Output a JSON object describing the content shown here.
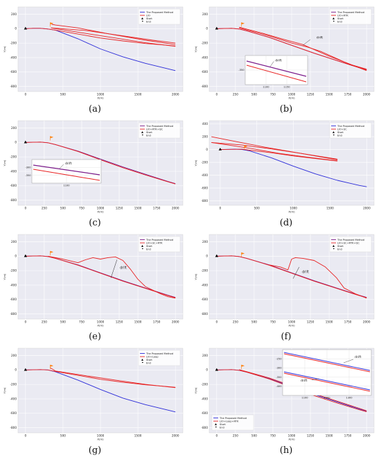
{
  "chart_data": [
    {
      "type": "line",
      "caption_label": "a",
      "xlabel": "X(m)",
      "ylabel": "Y(m)",
      "xlim": [
        -100,
        2100
      ],
      "ylim": [
        -870,
        300
      ],
      "xticks": [
        0,
        500,
        1000,
        1500,
        2000
      ],
      "yticks": [
        200,
        0,
        -200,
        -400,
        -600,
        -800
      ],
      "legend": "top-right",
      "legend_entries": [
        "The Proposed Method",
        "LIO",
        "Start",
        "End"
      ],
      "series": [
        {
          "name": "The Proposed Method",
          "color": "#2a2ad8",
          "x": [
            0,
            100,
            200,
            300,
            400,
            700,
            1000,
            1300,
            1600,
            1900,
            2000
          ],
          "y": [
            0,
            5,
            5,
            -5,
            -20,
            -140,
            -280,
            -390,
            -480,
            -555,
            -580
          ]
        },
        {
          "name": "LIO",
          "color": "#e82020",
          "x": [
            0,
            100,
            200,
            300,
            400,
            700,
            1000,
            1300,
            1600,
            1900,
            2000
          ],
          "y": [
            0,
            5,
            5,
            -5,
            -20,
            -75,
            -130,
            -170,
            -205,
            -230,
            -240
          ]
        },
        {
          "name": "LIO",
          "color": "#e82020",
          "x": [
            2000,
            1600,
            1200,
            800,
            400,
            340
          ],
          "y": [
            -245,
            -195,
            -130,
            -65,
            0,
            10
          ]
        },
        {
          "name": "LIO",
          "color": "#e82020",
          "x": [
            340,
            800,
            1300,
            1700,
            2000
          ],
          "y": [
            10,
            -25,
            -100,
            -160,
            -200
          ]
        },
        {
          "name": "LIO",
          "color": "#e82020",
          "x": [
            2000,
            1600,
            1100,
            700,
            400,
            350
          ],
          "y": [
            -220,
            -160,
            -70,
            10,
            50,
            60
          ]
        }
      ],
      "start": {
        "x": 0,
        "y": 0
      },
      "end": {
        "x": 330,
        "y": 55
      },
      "inset": null
    },
    {
      "type": "line",
      "caption_label": "b",
      "xlabel": "X(m)",
      "ylabel": "Y(m)",
      "xlim": [
        -100,
        2100
      ],
      "ylim": [
        -870,
        300
      ],
      "xticks": [
        0,
        250,
        500,
        750,
        1000,
        1250,
        1500,
        1750,
        2000
      ],
      "yticks": [
        200,
        0,
        -200,
        -400,
        -600,
        -800
      ],
      "legend": "top-right",
      "legend_entries": [
        "The Proposed Method",
        "LIO+RTK",
        "Start",
        "End"
      ],
      "series": [
        {
          "name": "The Proposed Method",
          "color": "#7a1a8a",
          "x": [
            0,
            200,
            300,
            400,
            700,
            1000,
            1300,
            1600,
            1900,
            2000
          ],
          "y": [
            0,
            5,
            -5,
            -30,
            -120,
            -230,
            -340,
            -440,
            -540,
            -570
          ]
        },
        {
          "name": "LIO+RTK",
          "color": "#e82020",
          "x": [
            0,
            200,
            300,
            400,
            700,
            1000,
            1300,
            1600,
            1900,
            2000
          ],
          "y": [
            0,
            5,
            -5,
            -30,
            -120,
            -230,
            -340,
            -440,
            -540,
            -570
          ]
        },
        {
          "name": "LIO+RTK",
          "color": "#e82020",
          "x": [
            300,
            600,
            900,
            1150,
            1300,
            1500,
            1800,
            2000
          ],
          "y": [
            20,
            -60,
            -150,
            -220,
            -290,
            -380,
            -500,
            -560
          ]
        },
        {
          "name": "LIO+RTK",
          "color": "#e82020",
          "x": [
            300,
            700,
            1000,
            1200,
            1400,
            1700,
            2000
          ],
          "y": [
            10,
            -100,
            -200,
            -250,
            -320,
            -460,
            -580
          ]
        }
      ],
      "start": {
        "x": 0,
        "y": 0
      },
      "end": {
        "x": 330,
        "y": 55
      },
      "annotation": "drift",
      "inset": {
        "xticks": [
          1100,
          1150
        ],
        "yticks": [
          -350
        ],
        "annotation": "drift"
      }
    },
    {
      "type": "line",
      "caption_label": "c",
      "xlabel": "X(m)",
      "ylabel": "Y(m)",
      "xlim": [
        -100,
        2100
      ],
      "ylim": [
        -870,
        300
      ],
      "xticks": [
        0,
        250,
        500,
        750,
        1000,
        1250,
        1500,
        1750,
        2000
      ],
      "yticks": [
        200,
        0,
        -200,
        -400,
        -600,
        -800
      ],
      "legend": "top-right",
      "legend_entries": [
        "The Proposed Method",
        "LIO+RTK+QC",
        "Start",
        "End"
      ],
      "series": [
        {
          "name": "The Proposed Method",
          "color": "#7a1a8a",
          "x": [
            0,
            200,
            300,
            400,
            700,
            1000,
            1300,
            1600,
            1900,
            2000
          ],
          "y": [
            0,
            5,
            -5,
            -30,
            -120,
            -230,
            -340,
            -440,
            -540,
            -570
          ]
        },
        {
          "name": "LIO+RTK+QC",
          "color": "#e82020",
          "x": [
            0,
            200,
            300,
            400,
            700,
            1000,
            1300,
            1600,
            1900,
            2000
          ],
          "y": [
            0,
            5,
            -5,
            -30,
            -125,
            -240,
            -350,
            -450,
            -545,
            -575
          ]
        }
      ],
      "start": {
        "x": 0,
        "y": 0
      },
      "end": {
        "x": 330,
        "y": 55
      },
      "inset": {
        "xticks": [
          1100
        ],
        "yticks": [
          -300,
          -350
        ],
        "annotation": "drift"
      }
    },
    {
      "type": "line",
      "caption_label": "d",
      "xlabel": "X(m)",
      "ylabel": "Y(m)",
      "xlim": [
        -150,
        2100
      ],
      "ylim": [
        -870,
        450
      ],
      "xticks": [
        0,
        500,
        1000,
        1500,
        2000
      ],
      "yticks": [
        400,
        200,
        0,
        -200,
        -400,
        -600,
        -800
      ],
      "legend": "top-right",
      "legend_entries": [
        "The Proposed Method",
        "LIO+SC",
        "Start",
        "End"
      ],
      "series": [
        {
          "name": "The Proposed Method",
          "color": "#2a2ad8",
          "x": [
            0,
            200,
            300,
            400,
            700,
            1000,
            1300,
            1600,
            1900,
            2000
          ],
          "y": [
            0,
            5,
            0,
            -20,
            -130,
            -260,
            -380,
            -480,
            -560,
            -580
          ]
        },
        {
          "name": "LIO+SC",
          "color": "#e82020",
          "x": [
            0,
            300,
            400,
            700,
            1000,
            1300,
            1600
          ],
          "y": [
            0,
            5,
            -10,
            -50,
            -100,
            -140,
            -180
          ]
        },
        {
          "name": "LIO+SC",
          "color": "#e82020",
          "x": [
            1600,
            1200,
            800,
            400,
            0,
            -120
          ],
          "y": [
            -175,
            -120,
            -60,
            20,
            90,
            110
          ]
        },
        {
          "name": "LIO+SC",
          "color": "#e82020",
          "x": [
            -120,
            300,
            700,
            1100,
            1600
          ],
          "y": [
            110,
            70,
            10,
            -60,
            -160
          ]
        },
        {
          "name": "LIO+SC",
          "color": "#e82020",
          "x": [
            1600,
            1100,
            600,
            100,
            -120
          ],
          "y": [
            -150,
            -60,
            40,
            150,
            200
          ]
        }
      ],
      "start": {
        "x": 0,
        "y": 0
      },
      "end": {
        "x": 330,
        "y": 30
      },
      "inset": null
    },
    {
      "type": "line",
      "caption_label": "e",
      "xlabel": "X(m)",
      "ylabel": "Y(m)",
      "xlim": [
        -100,
        2100
      ],
      "ylim": [
        -870,
        300
      ],
      "xticks": [
        0,
        250,
        500,
        750,
        1000,
        1250,
        1500,
        1750,
        2000
      ],
      "yticks": [
        200,
        0,
        -200,
        -400,
        -600,
        -800
      ],
      "legend": "top-right",
      "legend_entries": [
        "The Proposed Method",
        "LIO+SC+RTK",
        "Start",
        "End"
      ],
      "series": [
        {
          "name": "The Proposed Method",
          "color": "#7a1a8a",
          "x": [
            0,
            200,
            300,
            400,
            700,
            1000,
            1300,
            1600,
            1900,
            2000
          ],
          "y": [
            0,
            5,
            -5,
            -30,
            -120,
            -230,
            -340,
            -440,
            -540,
            -570
          ]
        },
        {
          "name": "LIO+SC+RTK",
          "color": "#e82020",
          "x": [
            0,
            200,
            300,
            400,
            700,
            1000,
            1300,
            1600,
            1900,
            2000
          ],
          "y": [
            0,
            5,
            -5,
            -30,
            -125,
            -235,
            -345,
            -445,
            -545,
            -575
          ]
        },
        {
          "name": "LIO+SC+RTK",
          "color": "#e82020",
          "x": [
            300,
            500,
            700,
            800,
            900,
            1000,
            1100,
            1200,
            1300,
            1400,
            1500,
            1600,
            1700,
            1800,
            1900,
            2000
          ],
          "y": [
            0,
            -40,
            -90,
            -50,
            -20,
            -40,
            -20,
            -10,
            -60,
            -180,
            -320,
            -420,
            -470,
            -520,
            -560,
            -580
          ]
        }
      ],
      "start": {
        "x": 0,
        "y": 0
      },
      "end": {
        "x": 330,
        "y": 40
      },
      "annotation": "drift",
      "inset": null
    },
    {
      "type": "line",
      "caption_label": "f",
      "xlabel": "X(m)",
      "ylabel": "Y(m)",
      "xlim": [
        -100,
        2100
      ],
      "ylim": [
        -870,
        300
      ],
      "xticks": [
        0,
        250,
        500,
        750,
        1000,
        1250,
        1500,
        1750,
        2000
      ],
      "yticks": [
        200,
        0,
        -200,
        -400,
        -600,
        -800
      ],
      "legend": "top-right",
      "legend_entries": [
        "The Proposed Method",
        "LIO+SC+RTK+QC",
        "Start",
        "End"
      ],
      "series": [
        {
          "name": "The Proposed Method",
          "color": "#7a1a8a",
          "x": [
            0,
            200,
            300,
            400,
            700,
            1000,
            1300,
            1600,
            1900,
            2000
          ],
          "y": [
            0,
            5,
            -5,
            -30,
            -120,
            -230,
            -340,
            -440,
            -540,
            -570
          ]
        },
        {
          "name": "LIO+SC+RTK+QC",
          "color": "#e82020",
          "x": [
            0,
            200,
            300,
            400,
            700,
            1000,
            1300,
            1600,
            1900,
            2000
          ],
          "y": [
            0,
            5,
            -5,
            -30,
            -125,
            -235,
            -345,
            -445,
            -545,
            -575
          ]
        },
        {
          "name": "LIO+SC+RTK+QC",
          "color": "#e82020",
          "x": [
            700,
            850,
            950,
            1000,
            1050,
            1150,
            1300,
            1450,
            1600,
            1700,
            1850,
            2000
          ],
          "y": [
            -120,
            -150,
            -190,
            -40,
            -20,
            -30,
            -60,
            -150,
            -300,
            -440,
            -520,
            -580
          ]
        }
      ],
      "start": {
        "x": 0,
        "y": 0
      },
      "end": {
        "x": 330,
        "y": 20
      },
      "annotation": "drift",
      "inset": null
    },
    {
      "type": "line",
      "caption_label": "g",
      "xlabel": "X(m)",
      "ylabel": "Y(m)",
      "xlim": [
        -100,
        2100
      ],
      "ylim": [
        -870,
        300
      ],
      "xticks": [
        0,
        500,
        1000,
        1500,
        2000
      ],
      "yticks": [
        200,
        0,
        -200,
        -400,
        -600,
        -800
      ],
      "legend": "top-right",
      "legend_entries": [
        "The Proposed Method",
        "LIO+Loop",
        "Start",
        "End"
      ],
      "series": [
        {
          "name": "The Proposed Method",
          "color": "#2a2ad8",
          "x": [
            0,
            200,
            300,
            400,
            700,
            1000,
            1300,
            1600,
            1900,
            2000
          ],
          "y": [
            0,
            5,
            0,
            -25,
            -140,
            -270,
            -390,
            -480,
            -555,
            -580
          ]
        },
        {
          "name": "LIO+Loop",
          "color": "#e82020",
          "x": [
            0,
            200,
            300,
            400,
            700,
            1000,
            1300,
            1600,
            1900,
            2000
          ],
          "y": [
            0,
            5,
            0,
            -20,
            -75,
            -130,
            -170,
            -205,
            -230,
            -240
          ]
        },
        {
          "name": "LIO+Loop",
          "color": "#e82020",
          "x": [
            2000,
            1600,
            1200,
            800,
            400,
            330
          ],
          "y": [
            -245,
            -200,
            -140,
            -80,
            -15,
            30
          ]
        }
      ],
      "start": {
        "x": 0,
        "y": 0
      },
      "end": {
        "x": 330,
        "y": 40
      },
      "inset": null
    },
    {
      "type": "line",
      "caption_label": "h",
      "xlabel": "X(m)",
      "ylabel": "Y(m)",
      "xlim": [
        -100,
        2100
      ],
      "ylim": [
        -870,
        300
      ],
      "xticks": [
        0,
        250,
        500,
        750,
        1000,
        1250,
        1500,
        1750,
        2000
      ],
      "yticks": [
        200,
        0,
        -200,
        -400,
        -600,
        -800
      ],
      "legend": "bottom-left",
      "legend_entries": [
        "The Proposed Method",
        "LIO+Loop+RTK",
        "Start",
        "End"
      ],
      "series": [
        {
          "name": "The Proposed Method",
          "color": "#2a2ad8",
          "x": [
            0,
            200,
            300,
            400,
            700,
            1000,
            1300,
            1600,
            1900,
            2000
          ],
          "y": [
            0,
            5,
            -5,
            -30,
            -120,
            -230,
            -340,
            -440,
            -540,
            -570
          ]
        },
        {
          "name": "LIO+Loop+RTK",
          "color": "#e82020",
          "x": [
            0,
            200,
            300,
            400,
            700,
            1000,
            1300,
            1600,
            1900,
            2000
          ],
          "y": [
            0,
            5,
            -5,
            -30,
            -125,
            -240,
            -355,
            -455,
            -550,
            -578
          ]
        },
        {
          "name": "LIO+Loop+RTK",
          "color": "#e82020",
          "x": [
            300,
            700,
            1000,
            1300,
            1600,
            1900,
            2000
          ],
          "y": [
            5,
            -110,
            -220,
            -330,
            -430,
            -530,
            -565
          ]
        }
      ],
      "start": {
        "x": 0,
        "y": 0
      },
      "end": {
        "x": 330,
        "y": 40
      },
      "inset": {
        "xticks": [
          1100,
          1200,
          1300
        ],
        "yticks": [
          -250,
          -300,
          -350,
          -400
        ],
        "annotation": "drift"
      }
    }
  ]
}
